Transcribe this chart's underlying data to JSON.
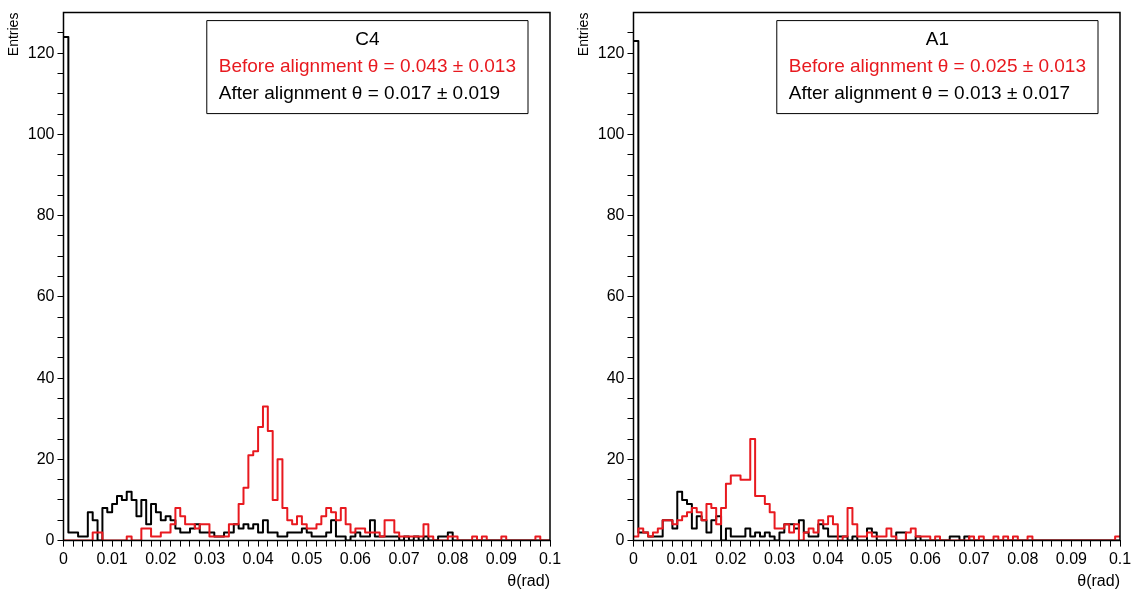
{
  "chart_data": [
    {
      "type": "histogram",
      "ylabel": "Entries",
      "xlabel": "θ(rad)",
      "legend_title": "C4",
      "legend": "top right",
      "grid": false,
      "xlim": [
        0,
        0.1
      ],
      "ylim": [
        0,
        130
      ],
      "xticks": [
        0,
        {
          "value": 0.002,
          "label": null
        },
        {
          "value": 0.004,
          "label": null
        },
        {
          "value": 0.006,
          "label": null
        },
        {
          "value": 0.008,
          "label": null
        },
        0.01,
        {
          "value": 0.012,
          "label": null
        },
        {
          "value": 0.014,
          "label": null
        },
        {
          "value": 0.016,
          "label": null
        },
        {
          "value": 0.018,
          "label": null
        },
        0.02,
        {
          "value": 0.022,
          "label": null
        },
        {
          "value": 0.024,
          "label": null
        },
        {
          "value": 0.026,
          "label": null
        },
        {
          "value": 0.028,
          "label": null
        },
        0.03,
        {
          "value": 0.032,
          "label": null
        },
        {
          "value": 0.034,
          "label": null
        },
        {
          "value": 0.036,
          "label": null
        },
        {
          "value": 0.038,
          "label": null
        },
        0.04,
        {
          "value": 0.042,
          "label": null
        },
        {
          "value": 0.044,
          "label": null
        },
        {
          "value": 0.046,
          "label": null
        },
        {
          "value": 0.048,
          "label": null
        },
        0.05,
        {
          "value": 0.052,
          "label": null
        },
        {
          "value": 0.054,
          "label": null
        },
        {
          "value": 0.056,
          "label": null
        },
        {
          "value": 0.058,
          "label": null
        },
        0.06,
        {
          "value": 0.062,
          "label": null
        },
        {
          "value": 0.064,
          "label": null
        },
        {
          "value": 0.066,
          "label": null
        },
        {
          "value": 0.068,
          "label": null
        },
        0.07,
        {
          "value": 0.072,
          "label": null
        },
        {
          "value": 0.074,
          "label": null
        },
        {
          "value": 0.076,
          "label": null
        },
        {
          "value": 0.078,
          "label": null
        },
        0.08,
        {
          "value": 0.082,
          "label": null
        },
        {
          "value": 0.084,
          "label": null
        },
        {
          "value": 0.086,
          "label": null
        },
        {
          "value": 0.088,
          "label": null
        },
        0.09,
        {
          "value": 0.092,
          "label": null
        },
        {
          "value": 0.094,
          "label": null
        },
        {
          "value": 0.096,
          "label": null
        },
        {
          "value": 0.098,
          "label": null
        },
        0.1
      ],
      "yticks": [
        0,
        {
          "value": 5,
          "label": null
        },
        {
          "value": 10,
          "label": null
        },
        {
          "value": 15,
          "label": null
        },
        20,
        {
          "value": 25,
          "label": null
        },
        {
          "value": 30,
          "label": null
        },
        {
          "value": 35,
          "label": null
        },
        40,
        {
          "value": 45,
          "label": null
        },
        {
          "value": 50,
          "label": null
        },
        {
          "value": 55,
          "label": null
        },
        60,
        {
          "value": 65,
          "label": null
        },
        {
          "value": 70,
          "label": null
        },
        {
          "value": 75,
          "label": null
        },
        80,
        {
          "value": 85,
          "label": null
        },
        {
          "value": 90,
          "label": null
        },
        {
          "value": 95,
          "label": null
        },
        100,
        {
          "value": 105,
          "label": null
        },
        {
          "value": 110,
          "label": null
        },
        {
          "value": 115,
          "label": null
        },
        120,
        {
          "value": 125,
          "label": null
        }
      ],
      "bins": [
        0,
        0.001,
        0.002,
        0.003,
        0.004,
        0.005,
        0.006,
        0.007,
        0.008,
        0.009,
        0.01,
        0.011,
        0.012,
        0.013,
        0.014,
        0.015,
        0.016,
        0.017,
        0.018,
        0.019,
        0.02,
        0.021,
        0.022,
        0.023,
        0.024,
        0.025,
        0.026,
        0.027,
        0.028,
        0.029,
        0.03,
        0.031,
        0.032,
        0.033,
        0.034,
        0.035,
        0.036,
        0.037,
        0.038,
        0.039,
        0.04,
        0.041,
        0.042,
        0.043,
        0.044,
        0.045,
        0.046,
        0.047,
        0.048,
        0.049,
        0.05,
        0.051,
        0.052,
        0.053,
        0.054,
        0.055,
        0.056,
        0.057,
        0.058,
        0.059,
        0.06,
        0.061,
        0.062,
        0.063,
        0.064,
        0.065,
        0.066,
        0.067,
        0.068,
        0.069,
        0.07,
        0.071,
        0.072,
        0.073,
        0.074,
        0.075,
        0.076,
        0.077,
        0.078,
        0.079,
        0.08,
        0.081,
        0.082,
        0.083,
        0.084,
        0.085,
        0.086,
        0.087,
        0.088,
        0.089,
        0.09,
        0.091,
        0.092,
        0.093,
        0.094,
        0.095,
        0.096,
        0.097,
        0.098,
        0.099,
        0.1
      ],
      "series": [
        {
          "name": "Before alignment θ = 0.043 ± 0.013",
          "color": "#e8191f",
          "values": [
            0,
            0,
            0,
            0,
            0,
            0,
            2,
            2,
            0,
            0,
            0,
            0,
            0,
            1,
            0,
            0,
            3,
            3,
            1,
            1,
            2,
            2,
            4,
            8,
            6,
            4,
            4,
            3,
            4,
            4,
            1,
            1,
            1,
            1,
            4,
            4,
            9,
            13,
            21,
            22,
            28,
            33,
            27,
            10,
            20,
            8,
            5,
            4,
            6,
            4,
            3,
            3,
            4,
            6,
            8,
            7,
            5,
            8,
            4,
            2,
            3,
            3,
            2,
            2,
            2,
            1,
            5,
            5,
            2,
            1,
            1,
            1,
            1,
            1,
            4,
            1,
            0,
            0,
            0,
            1,
            1,
            0,
            0,
            0,
            1,
            0,
            1,
            0,
            0,
            0,
            1,
            0,
            0,
            0,
            0,
            0,
            0,
            1,
            0,
            0
          ]
        },
        {
          "name": "After alignment θ = 0.017 ± 0.019",
          "color": "#000000",
          "values": [
            124,
            2,
            2,
            1,
            1,
            7,
            5,
            0,
            8,
            7,
            9,
            11,
            10,
            12,
            10,
            6,
            10,
            4,
            9,
            7,
            5,
            6,
            5,
            3,
            2,
            2,
            3,
            4,
            2,
            2,
            2,
            1,
            1,
            2,
            2,
            4,
            3,
            4,
            3,
            4,
            2,
            5,
            2,
            2,
            1,
            1,
            2,
            2,
            2,
            3,
            2,
            1,
            1,
            1,
            2,
            5,
            1,
            1,
            0,
            1,
            2,
            1,
            1,
            5,
            1,
            1,
            1,
            1,
            1,
            0,
            1,
            0,
            1,
            0,
            1,
            0,
            0,
            1,
            1,
            2,
            0,
            0,
            0,
            0,
            0,
            0,
            0,
            0,
            0,
            0,
            0,
            0,
            0,
            0,
            0,
            0,
            0,
            0,
            0,
            0
          ]
        }
      ]
    },
    {
      "type": "histogram",
      "ylabel": "Entries",
      "xlabel": "θ(rad)",
      "legend_title": "A1",
      "legend": "top right",
      "grid": false,
      "xlim": [
        0,
        0.1
      ],
      "ylim": [
        0,
        130
      ],
      "xticks": [
        0,
        {
          "value": 0.002,
          "label": null
        },
        {
          "value": 0.004,
          "label": null
        },
        {
          "value": 0.006,
          "label": null
        },
        {
          "value": 0.008,
          "label": null
        },
        0.01,
        {
          "value": 0.012,
          "label": null
        },
        {
          "value": 0.014,
          "label": null
        },
        {
          "value": 0.016,
          "label": null
        },
        {
          "value": 0.018,
          "label": null
        },
        0.02,
        {
          "value": 0.022,
          "label": null
        },
        {
          "value": 0.024,
          "label": null
        },
        {
          "value": 0.026,
          "label": null
        },
        {
          "value": 0.028,
          "label": null
        },
        0.03,
        {
          "value": 0.032,
          "label": null
        },
        {
          "value": 0.034,
          "label": null
        },
        {
          "value": 0.036,
          "label": null
        },
        {
          "value": 0.038,
          "label": null
        },
        0.04,
        {
          "value": 0.042,
          "label": null
        },
        {
          "value": 0.044,
          "label": null
        },
        {
          "value": 0.046,
          "label": null
        },
        {
          "value": 0.048,
          "label": null
        },
        0.05,
        {
          "value": 0.052,
          "label": null
        },
        {
          "value": 0.054,
          "label": null
        },
        {
          "value": 0.056,
          "label": null
        },
        {
          "value": 0.058,
          "label": null
        },
        0.06,
        {
          "value": 0.062,
          "label": null
        },
        {
          "value": 0.064,
          "label": null
        },
        {
          "value": 0.066,
          "label": null
        },
        {
          "value": 0.068,
          "label": null
        },
        0.07,
        {
          "value": 0.072,
          "label": null
        },
        {
          "value": 0.074,
          "label": null
        },
        {
          "value": 0.076,
          "label": null
        },
        {
          "value": 0.078,
          "label": null
        },
        0.08,
        {
          "value": 0.082,
          "label": null
        },
        {
          "value": 0.084,
          "label": null
        },
        {
          "value": 0.086,
          "label": null
        },
        {
          "value": 0.088,
          "label": null
        },
        0.09,
        {
          "value": 0.092,
          "label": null
        },
        {
          "value": 0.094,
          "label": null
        },
        {
          "value": 0.096,
          "label": null
        },
        {
          "value": 0.098,
          "label": null
        },
        0.1
      ],
      "yticks": [
        0,
        {
          "value": 5,
          "label": null
        },
        {
          "value": 10,
          "label": null
        },
        {
          "value": 15,
          "label": null
        },
        20,
        {
          "value": 25,
          "label": null
        },
        {
          "value": 30,
          "label": null
        },
        {
          "value": 35,
          "label": null
        },
        40,
        {
          "value": 45,
          "label": null
        },
        {
          "value": 50,
          "label": null
        },
        {
          "value": 55,
          "label": null
        },
        60,
        {
          "value": 65,
          "label": null
        },
        {
          "value": 70,
          "label": null
        },
        {
          "value": 75,
          "label": null
        },
        80,
        {
          "value": 85,
          "label": null
        },
        {
          "value": 90,
          "label": null
        },
        {
          "value": 95,
          "label": null
        },
        100,
        {
          "value": 105,
          "label": null
        },
        {
          "value": 110,
          "label": null
        },
        {
          "value": 115,
          "label": null
        },
        120,
        {
          "value": 125,
          "label": null
        }
      ],
      "bins": [
        0,
        0.001,
        0.002,
        0.003,
        0.004,
        0.005,
        0.006,
        0.007,
        0.008,
        0.009,
        0.01,
        0.011,
        0.012,
        0.013,
        0.014,
        0.015,
        0.016,
        0.017,
        0.018,
        0.019,
        0.02,
        0.021,
        0.022,
        0.023,
        0.024,
        0.025,
        0.026,
        0.027,
        0.028,
        0.029,
        0.03,
        0.031,
        0.032,
        0.033,
        0.034,
        0.035,
        0.036,
        0.037,
        0.038,
        0.039,
        0.04,
        0.041,
        0.042,
        0.043,
        0.044,
        0.045,
        0.046,
        0.047,
        0.048,
        0.049,
        0.05,
        0.051,
        0.052,
        0.053,
        0.054,
        0.055,
        0.056,
        0.057,
        0.058,
        0.059,
        0.06,
        0.061,
        0.062,
        0.063,
        0.064,
        0.065,
        0.066,
        0.067,
        0.068,
        0.069,
        0.07,
        0.071,
        0.072,
        0.073,
        0.074,
        0.075,
        0.076,
        0.077,
        0.078,
        0.079,
        0.08,
        0.081,
        0.082,
        0.083,
        0.084,
        0.085,
        0.086,
        0.087,
        0.088,
        0.089,
        0.09,
        0.091,
        0.092,
        0.093,
        0.094,
        0.095,
        0.096,
        0.097,
        0.098,
        0.099,
        0.1
      ],
      "series": [
        {
          "name": "Before alignment θ = 0.025 ± 0.013",
          "color": "#e8191f",
          "values": [
            1,
            3,
            2,
            1,
            2,
            3,
            5,
            5,
            4,
            5,
            6,
            7,
            8,
            7,
            5,
            9,
            8,
            4,
            8,
            14,
            16,
            16,
            15,
            15,
            25,
            11,
            11,
            9,
            7,
            3,
            3,
            4,
            2,
            4,
            0,
            2,
            3,
            2,
            5,
            4,
            6,
            4,
            0,
            1,
            8,
            4,
            1,
            1,
            2,
            1,
            1,
            1,
            3,
            1,
            0,
            0,
            2,
            3,
            1,
            1,
            1,
            0,
            1,
            0,
            0,
            0,
            0,
            0,
            0,
            1,
            0,
            1,
            0,
            0,
            1,
            0,
            1,
            0,
            1,
            0,
            0,
            1,
            0,
            0,
            0,
            0,
            0,
            0,
            0,
            0,
            0,
            0,
            0,
            0,
            0,
            0,
            0,
            0,
            0,
            1
          ]
        },
        {
          "name": "After alignment θ = 0.013 ± 0.017",
          "color": "#000000",
          "values": [
            123,
            2,
            2,
            1,
            1,
            1,
            5,
            5,
            3,
            12,
            10,
            9,
            3,
            6,
            5,
            2,
            5,
            6,
            0,
            3,
            1,
            1,
            1,
            3,
            1,
            2,
            1,
            2,
            1,
            0,
            2,
            4,
            4,
            3,
            5,
            2,
            1,
            1,
            4,
            3,
            1,
            1,
            1,
            1,
            0,
            1,
            0,
            0,
            3,
            2,
            0,
            0,
            0,
            0,
            2,
            2,
            0,
            0,
            1,
            0,
            0,
            0,
            0,
            0,
            0,
            1,
            1,
            0,
            1,
            0,
            0,
            0,
            0,
            0,
            0,
            0,
            0,
            0,
            0,
            0,
            0,
            0,
            0,
            0,
            0,
            0,
            0,
            0,
            0,
            0,
            0,
            0,
            0,
            0,
            0,
            0,
            0,
            0,
            0,
            0
          ]
        }
      ]
    }
  ]
}
